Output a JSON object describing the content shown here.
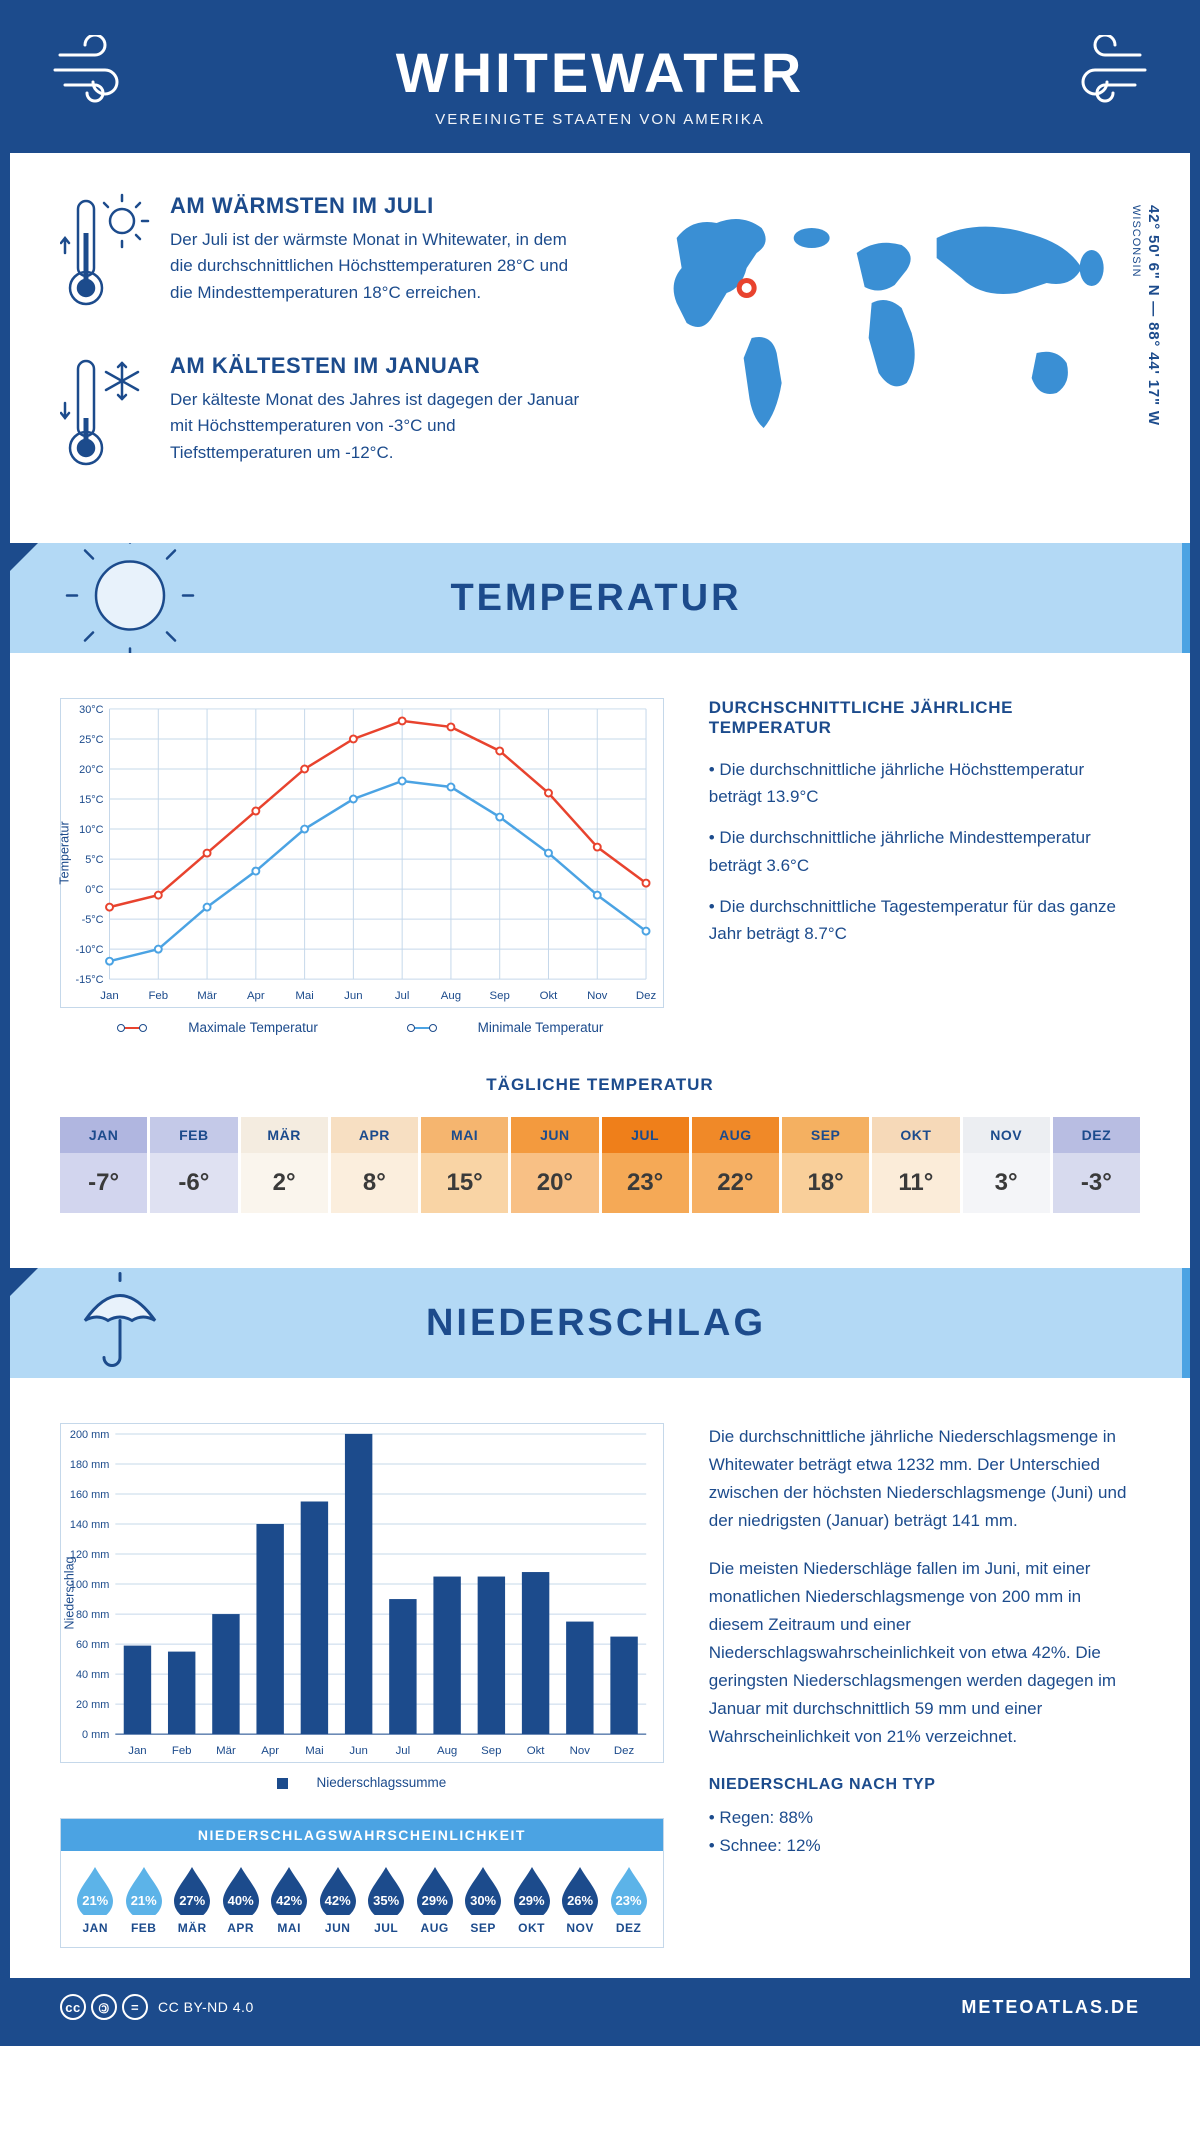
{
  "header": {
    "title": "WHITEWATER",
    "subtitle": "VEREINIGTE STAATEN VON AMERIKA"
  },
  "location": {
    "lat": "42° 50' 6\" N",
    "lon": "88° 44' 17\" W",
    "state": "WISCONSIN",
    "marker_color": "#e8432e"
  },
  "overview": {
    "warm": {
      "title": "AM WÄRMSTEN IM JULI",
      "text": "Der Juli ist der wärmste Monat in Whitewater, in dem die durchschnittlichen Höchsttemperaturen 28°C und die Mindesttemperaturen 18°C erreichen."
    },
    "cold": {
      "title": "AM KÄLTESTEN IM JANUAR",
      "text": "Der kälteste Monat des Jahres ist dagegen der Januar mit Höchsttemperaturen von -3°C und Tiefsttemperaturen um -12°C."
    }
  },
  "temperature": {
    "banner": "TEMPERATUR",
    "chart": {
      "type": "line",
      "months": [
        "Jan",
        "Feb",
        "Mär",
        "Apr",
        "Mai",
        "Jun",
        "Jul",
        "Aug",
        "Sep",
        "Okt",
        "Nov",
        "Dez"
      ],
      "max": [
        -3,
        -1,
        6,
        13,
        20,
        25,
        28,
        27,
        23,
        16,
        7,
        1
      ],
      "min": [
        -12,
        -10,
        -3,
        3,
        10,
        15,
        18,
        17,
        12,
        6,
        -1,
        -7
      ],
      "max_color": "#e8432e",
      "min_color": "#4ba3e3",
      "ylim": [
        -15,
        30
      ],
      "ytick_step": 5,
      "grid_color": "#c5d8ea",
      "ylabel": "Temperatur",
      "legend_max": "Maximale Temperatur",
      "legend_min": "Minimale Temperatur"
    },
    "side": {
      "title": "DURCHSCHNITTLICHE JÄHRLICHE TEMPERATUR",
      "b1": "• Die durchschnittliche jährliche Höchsttemperatur beträgt 13.9°C",
      "b2": "• Die durchschnittliche jährliche Mindesttemperatur beträgt 3.6°C",
      "b3": "• Die durchschnittliche Tagestemperatur für das ganze Jahr beträgt 8.7°C"
    },
    "daily": {
      "title": "TÄGLICHE TEMPERATUR",
      "months": [
        "JAN",
        "FEB",
        "MÄR",
        "APR",
        "MAI",
        "JUN",
        "JUL",
        "AUG",
        "SEP",
        "OKT",
        "NOV",
        "DEZ"
      ],
      "values": [
        "-7°",
        "-6°",
        "2°",
        "8°",
        "15°",
        "20°",
        "23°",
        "22°",
        "18°",
        "11°",
        "3°",
        "-3°"
      ],
      "month_bg": [
        "#b0b6e0",
        "#c4c9e8",
        "#f4ece0",
        "#f7dfc2",
        "#f5b56f",
        "#f39a3e",
        "#ef7f1a",
        "#f08928",
        "#f4b061",
        "#f6d9b8",
        "#eceef2",
        "#b8bde2"
      ],
      "val_bg": [
        "#d2d5ee",
        "#dfe1f2",
        "#faf5ed",
        "#fbeedd",
        "#f9d4a5",
        "#f8c085",
        "#f5a956",
        "#f6b064",
        "#f9cf9a",
        "#fbecd9",
        "#f4f5f8",
        "#d7daee"
      ]
    }
  },
  "precip": {
    "banner": "NIEDERSCHLAG",
    "chart": {
      "type": "bar",
      "months": [
        "Jan",
        "Feb",
        "Mär",
        "Apr",
        "Mai",
        "Jun",
        "Jul",
        "Aug",
        "Sep",
        "Okt",
        "Nov",
        "Dez"
      ],
      "values": [
        59,
        55,
        80,
        140,
        155,
        200,
        90,
        105,
        105,
        108,
        75,
        65
      ],
      "bar_color": "#1c4b8c",
      "ylim": [
        0,
        200
      ],
      "ytick_step": 20,
      "grid_color": "#c5d8ea",
      "ylabel": "Niederschlag",
      "legend": "Niederschlagssumme"
    },
    "text1": "Die durchschnittliche jährliche Niederschlagsmenge in Whitewater beträgt etwa 1232 mm. Der Unterschied zwischen der höchsten Niederschlagsmenge (Juni) und der niedrigsten (Januar) beträgt 141 mm.",
    "text2": "Die meisten Niederschläge fallen im Juni, mit einer monatlichen Niederschlagsmenge von 200 mm in diesem Zeitraum und einer Niederschlagswahrscheinlichkeit von etwa 42%. Die geringsten Niederschlagsmengen werden dagegen im Januar mit durchschnittlich 59 mm und einer Wahrscheinlichkeit von 21% verzeichnet.",
    "by_type_title": "NIEDERSCHLAG NACH TYP",
    "rain": "• Regen: 88%",
    "snow": "• Schnee: 12%",
    "prob": {
      "title": "NIEDERSCHLAGSWAHRSCHEINLICHKEIT",
      "months": [
        "JAN",
        "FEB",
        "MÄR",
        "APR",
        "MAI",
        "JUN",
        "JUL",
        "AUG",
        "SEP",
        "OKT",
        "NOV",
        "DEZ"
      ],
      "values": [
        "21%",
        "21%",
        "27%",
        "40%",
        "42%",
        "42%",
        "35%",
        "29%",
        "30%",
        "29%",
        "26%",
        "23%"
      ],
      "colors": [
        "#5cb3e8",
        "#5cb3e8",
        "#1c4b8c",
        "#1c4b8c",
        "#1c4b8c",
        "#1c4b8c",
        "#1c4b8c",
        "#1c4b8c",
        "#1c4b8c",
        "#1c4b8c",
        "#1c4b8c",
        "#5cb3e8"
      ]
    }
  },
  "footer": {
    "license": "CC BY-ND 4.0",
    "brand": "METEOATLAS.DE"
  }
}
